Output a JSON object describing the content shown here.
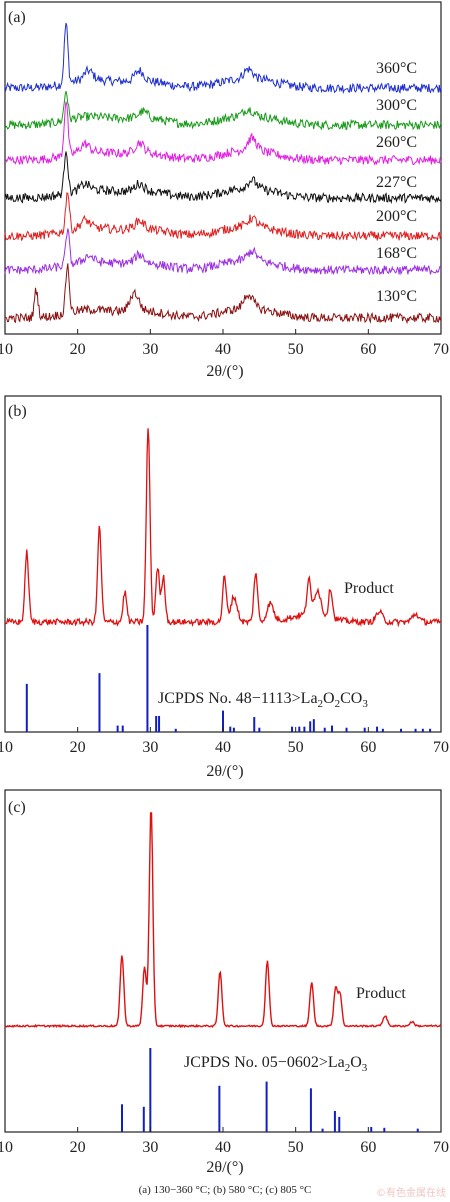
{
  "caption": "(a) 130−360 °C; (b) 580 °C; (c) 805 °C",
  "watermark": "©有色金属在线",
  "chart_data": [
    {
      "type": "line",
      "panel_label": "(a)",
      "xlabel": "2θ/(°)",
      "xlim": [
        10,
        70
      ],
      "xticks": [
        10,
        20,
        30,
        40,
        50,
        60,
        70
      ],
      "series": [
        {
          "name": "360°C",
          "color": "#1f2fd0",
          "peaks": [
            [
              18.4,
              60
            ],
            [
              21.5,
              9
            ],
            [
              28.5,
              10
            ],
            [
              43.5,
              9
            ]
          ]
        },
        {
          "name": "300°C",
          "color": "#1a9a1a",
          "peaks": [
            [
              18.4,
              30
            ],
            [
              29.0,
              6
            ],
            [
              43.5,
              6
            ]
          ]
        },
        {
          "name": "260°C",
          "color": "#e020e0",
          "peaks": [
            [
              18.4,
              55
            ],
            [
              21.0,
              8
            ],
            [
              28.5,
              10
            ],
            [
              44.0,
              12
            ]
          ]
        },
        {
          "name": "227°C",
          "color": "#111111",
          "peaks": [
            [
              18.4,
              45
            ],
            [
              21.0,
              6
            ],
            [
              28.5,
              7
            ],
            [
              44.0,
              8
            ]
          ]
        },
        {
          "name": "200°C",
          "color": "#e02020",
          "peaks": [
            [
              18.6,
              40
            ],
            [
              21.0,
              8
            ],
            [
              28.5,
              8
            ],
            [
              44.0,
              8
            ]
          ]
        },
        {
          "name": "168°C",
          "color": "#9b30e0",
          "peaks": [
            [
              18.6,
              35
            ],
            [
              21.5,
              6
            ],
            [
              28.5,
              8
            ],
            [
              44.0,
              9
            ]
          ]
        },
        {
          "name": "130°C",
          "color": "#8b1010",
          "peaks": [
            [
              14.3,
              28
            ],
            [
              18.6,
              48
            ],
            [
              27.8,
              18
            ],
            [
              43.5,
              14
            ]
          ]
        }
      ]
    },
    {
      "type": "line",
      "panel_label": "(b)",
      "xlabel": "2θ/(°)",
      "xlim": [
        10,
        70
      ],
      "xticks": [
        10,
        20,
        30,
        40,
        50,
        60,
        70
      ],
      "series": [
        {
          "name": "Product",
          "color": "#e01010",
          "peaks": [
            [
              13.0,
              70
            ],
            [
              23.0,
              95
            ],
            [
              26.5,
              30
            ],
            [
              29.7,
              195
            ],
            [
              31.0,
              55
            ],
            [
              31.8,
              45
            ],
            [
              40.2,
              45
            ],
            [
              41.5,
              25
            ],
            [
              44.5,
              50
            ],
            [
              46.5,
              18
            ],
            [
              51.8,
              35
            ],
            [
              53.0,
              25
            ],
            [
              54.8,
              30
            ],
            [
              61.5,
              10
            ],
            [
              66.5,
              8
            ]
          ]
        }
      ],
      "reference": {
        "label_main": "JCPDS No. 48−1113>La",
        "label_sub1": "2",
        "label_mid": "O",
        "label_sub2": "2",
        "label_end": "CO",
        "label_sub3": "3",
        "color": "#1020c0",
        "lines": [
          [
            13.0,
            45
          ],
          [
            23.0,
            55
          ],
          [
            25.5,
            6
          ],
          [
            26.2,
            6
          ],
          [
            29.6,
            100
          ],
          [
            30.8,
            15
          ],
          [
            31.2,
            15
          ],
          [
            33.5,
            3
          ],
          [
            40.0,
            20
          ],
          [
            41.0,
            5
          ],
          [
            41.5,
            4
          ],
          [
            44.3,
            14
          ],
          [
            45.0,
            4
          ],
          [
            49.5,
            5
          ],
          [
            50.5,
            5
          ],
          [
            51.2,
            5
          ],
          [
            52.0,
            10
          ],
          [
            52.5,
            12
          ],
          [
            54.0,
            4
          ],
          [
            55.0,
            6
          ],
          [
            57.0,
            4
          ],
          [
            59.5,
            4
          ],
          [
            61.2,
            5
          ],
          [
            62.0,
            3
          ],
          [
            64.5,
            3
          ],
          [
            66.5,
            3
          ],
          [
            67.5,
            3
          ],
          [
            68.5,
            3
          ]
        ]
      }
    },
    {
      "type": "line",
      "panel_label": "(c)",
      "xlabel": "2θ/(°)",
      "xlim": [
        10,
        70
      ],
      "xticks": [
        10,
        20,
        30,
        40,
        50,
        60,
        70
      ],
      "series": [
        {
          "name": "Product",
          "color": "#e01010",
          "peaks": [
            [
              26.1,
              85
            ],
            [
              29.2,
              70
            ],
            [
              30.1,
              260
            ],
            [
              39.6,
              65
            ],
            [
              46.1,
              78
            ],
            [
              52.2,
              52
            ],
            [
              55.5,
              45
            ],
            [
              56.1,
              38
            ],
            [
              62.3,
              12
            ],
            [
              66.0,
              5
            ]
          ]
        }
      ],
      "reference": {
        "label_main": "JCPDS No. 05−0602>La",
        "label_sub1": "2",
        "label_mid": "O",
        "label_sub2": "",
        "label_end": "",
        "label_sub3": "3",
        "color": "#1020c0",
        "lines": [
          [
            26.1,
            33
          ],
          [
            29.1,
            30
          ],
          [
            30.0,
            100
          ],
          [
            39.5,
            55
          ],
          [
            46.0,
            60
          ],
          [
            52.1,
            52
          ],
          [
            53.7,
            4
          ],
          [
            55.4,
            25
          ],
          [
            56.0,
            18
          ],
          [
            60.4,
            6
          ],
          [
            62.2,
            5
          ],
          [
            66.8,
            4
          ]
        ]
      }
    }
  ]
}
